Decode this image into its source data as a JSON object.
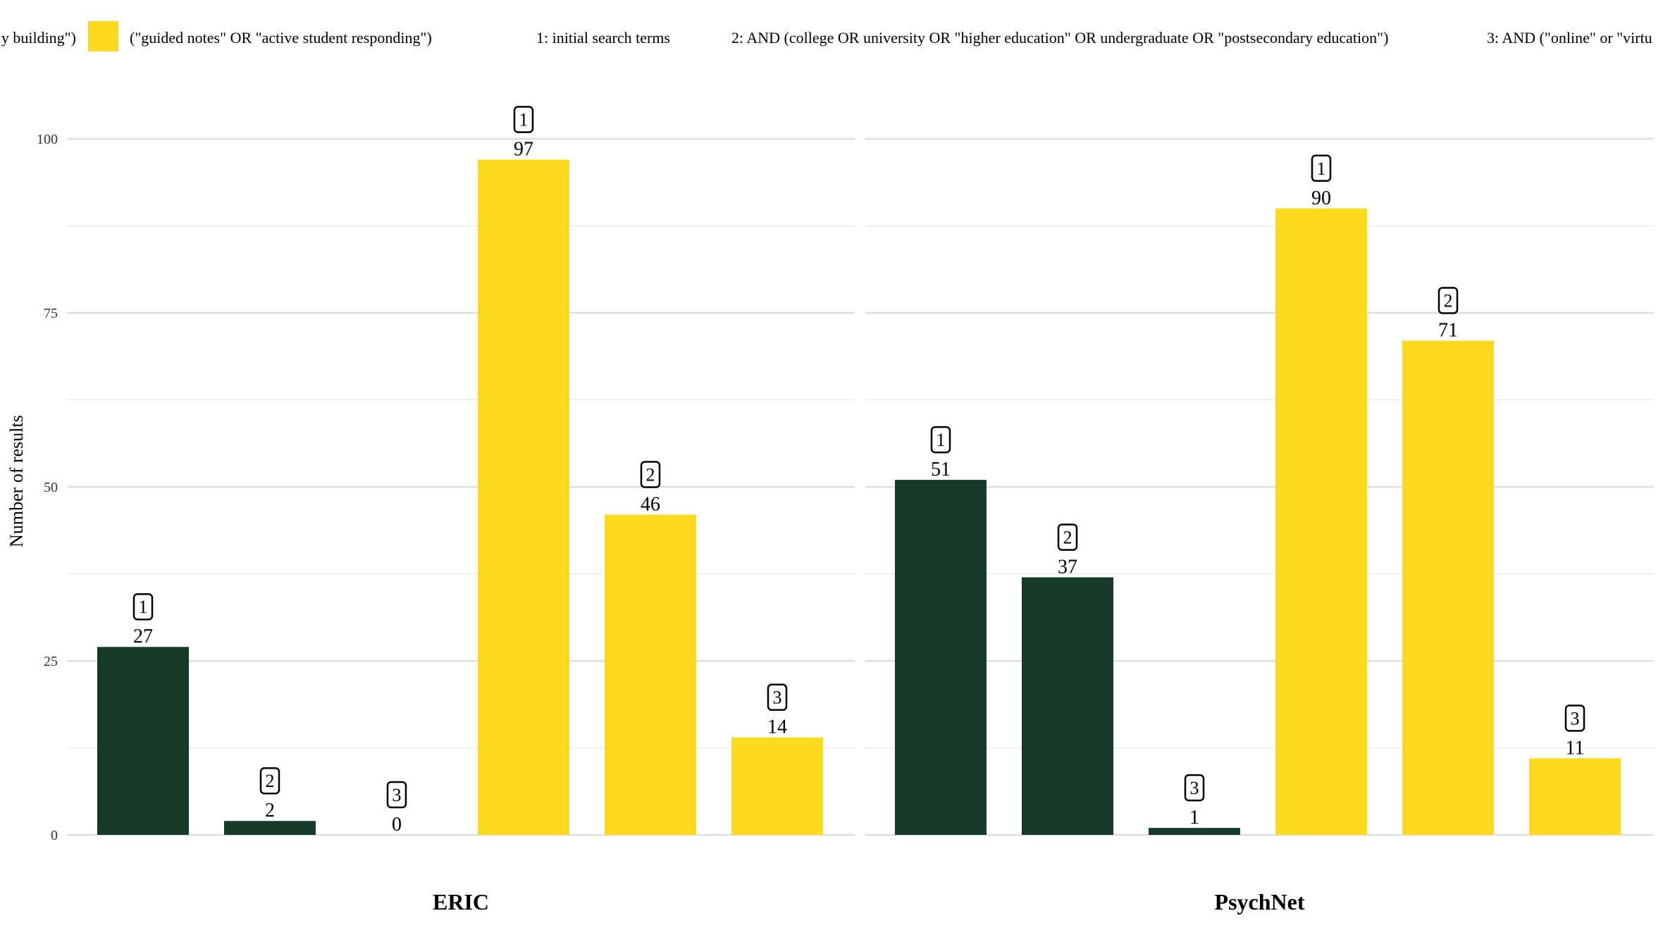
{
  "legend": {
    "items": [
      {
        "label": "y building\")",
        "color": "#163a28"
      },
      {
        "label": "(\"guided notes\" OR \"active student responding\")",
        "color": "#fdda1d"
      }
    ],
    "notes": [
      "1: initial search terms",
      "2: AND (college OR university OR \"higher education\" OR undergraduate OR \"postsecondary education\")",
      "3: AND (\"online\" or \"virtu"
    ]
  },
  "chart_data": {
    "type": "bar",
    "ylabel": "Number of results",
    "ylim": [
      0,
      100
    ],
    "yticks": [
      0,
      25,
      50,
      75,
      100
    ],
    "grid": true,
    "legend_position": "top",
    "colors": {
      "series1": "#163a28",
      "series2": "#fdda1d"
    },
    "panels": [
      {
        "title": "ERIC",
        "bars": [
          {
            "series": 1,
            "step": "1",
            "value": 27
          },
          {
            "series": 1,
            "step": "2",
            "value": 2
          },
          {
            "series": 1,
            "step": "3",
            "value": 0
          },
          {
            "series": 2,
            "step": "1",
            "value": 97
          },
          {
            "series": 2,
            "step": "2",
            "value": 46
          },
          {
            "series": 2,
            "step": "3",
            "value": 14
          }
        ]
      },
      {
        "title": "PsychNet",
        "bars": [
          {
            "series": 1,
            "step": "1",
            "value": 51
          },
          {
            "series": 1,
            "step": "2",
            "value": 37
          },
          {
            "series": 1,
            "step": "3",
            "value": 1
          },
          {
            "series": 2,
            "step": "1",
            "value": 90
          },
          {
            "series": 2,
            "step": "2",
            "value": 71
          },
          {
            "series": 2,
            "step": "3",
            "value": 11
          }
        ]
      }
    ]
  }
}
